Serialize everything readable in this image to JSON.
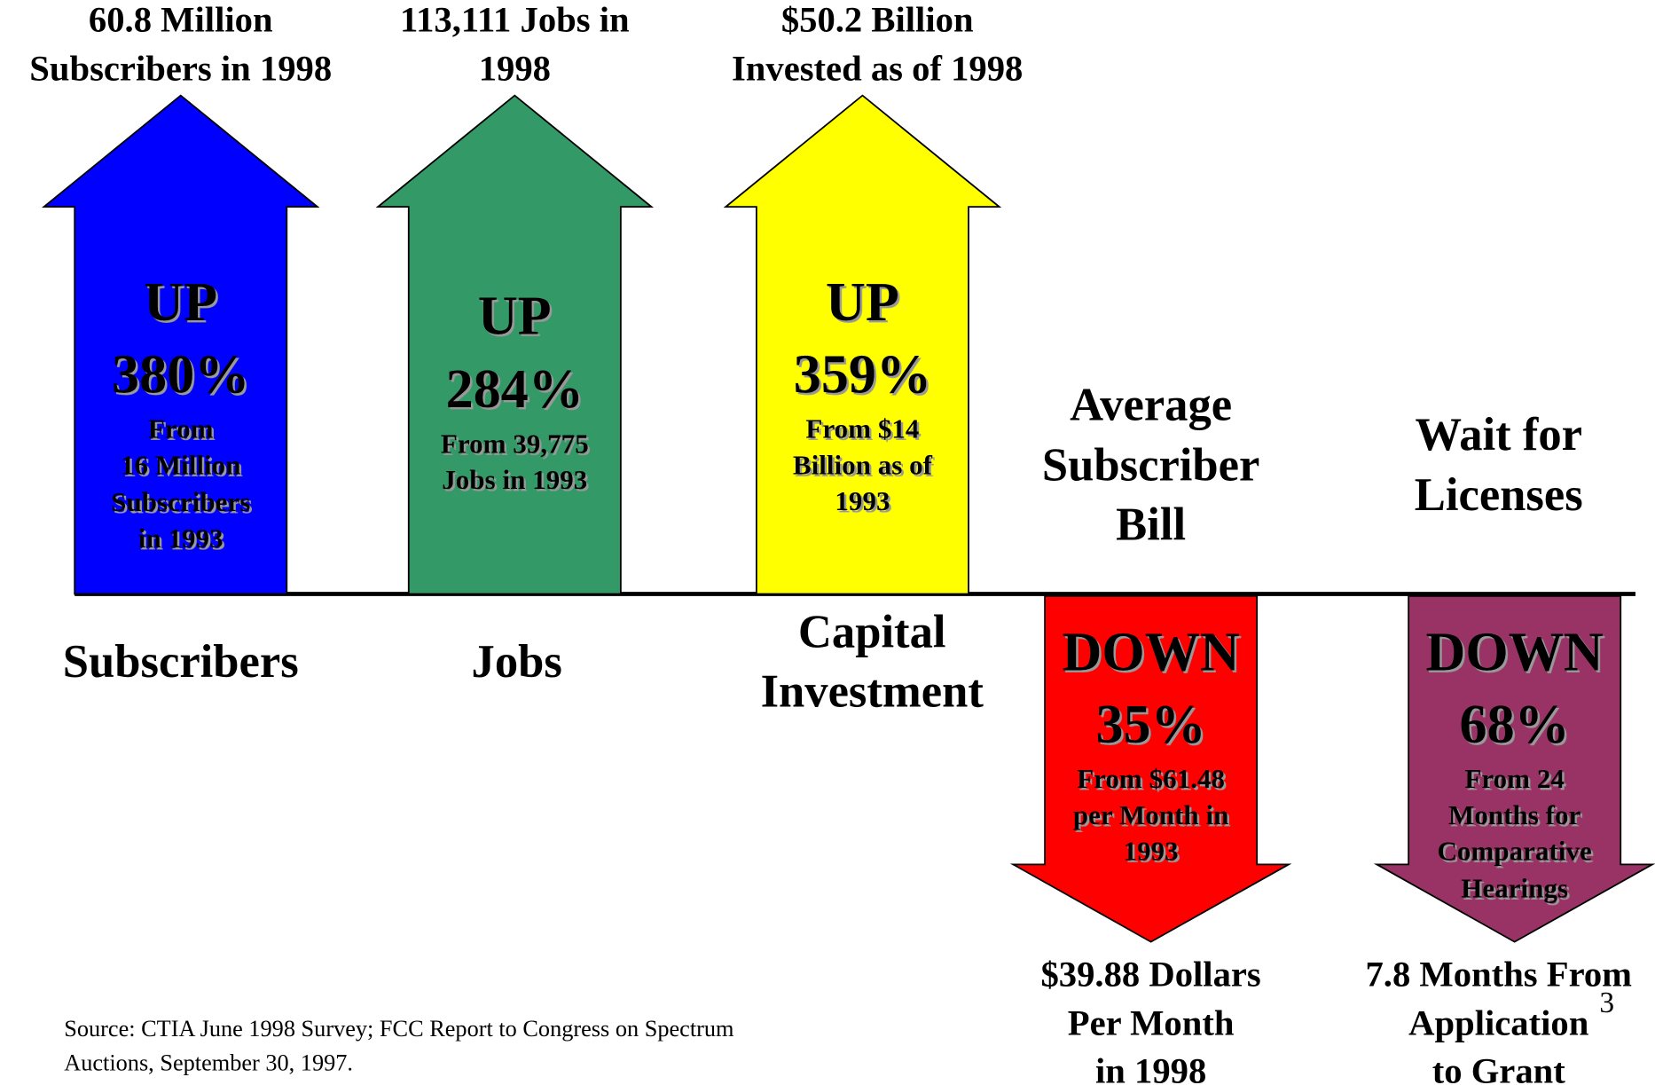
{
  "arrows": [
    {
      "direction": "UP",
      "percent": "380%",
      "color": "#0000ff",
      "detail": [
        "From",
        "16 Million",
        "Subscribers",
        "in 1993"
      ],
      "result": [
        "60.8 Million",
        "Subscribers in 1998"
      ],
      "category": [
        "Subscribers"
      ]
    },
    {
      "direction": "UP",
      "percent": "284%",
      "color": "#339966",
      "detail": [
        "From 39,775",
        "Jobs in 1993"
      ],
      "result": [
        "113,111 Jobs in",
        "1998"
      ],
      "category": [
        "Jobs"
      ]
    },
    {
      "direction": "UP",
      "percent": "359%",
      "color": "#ffff00",
      "detail": [
        "From $14",
        "Billion as of",
        "1993"
      ],
      "result": [
        "$50.2 Billion",
        "Invested as of 1998"
      ],
      "category": [
        "Capital",
        "Investment"
      ]
    },
    {
      "direction": "DOWN",
      "percent": "35%",
      "color": "#ff0000",
      "detail": [
        "From $61.48",
        "per Month in",
        "1993"
      ],
      "result": [
        "$39.88 Dollars",
        "Per Month",
        "in 1998"
      ],
      "category": [
        "Average",
        "Subscriber",
        "Bill"
      ]
    },
    {
      "direction": "DOWN",
      "percent": "68%",
      "color": "#993366",
      "detail": [
        "From 24",
        "Months for",
        "Comparative",
        "Hearings"
      ],
      "result": [
        "7.8 Months From",
        "Application",
        "to Grant"
      ],
      "category": [
        "Wait for",
        "Licenses"
      ]
    }
  ],
  "source": [
    "Source: CTIA June 1998 Survey; FCC Report to Congress on Spectrum",
    "Auctions, September 30, 1997."
  ],
  "page_number": "3"
}
